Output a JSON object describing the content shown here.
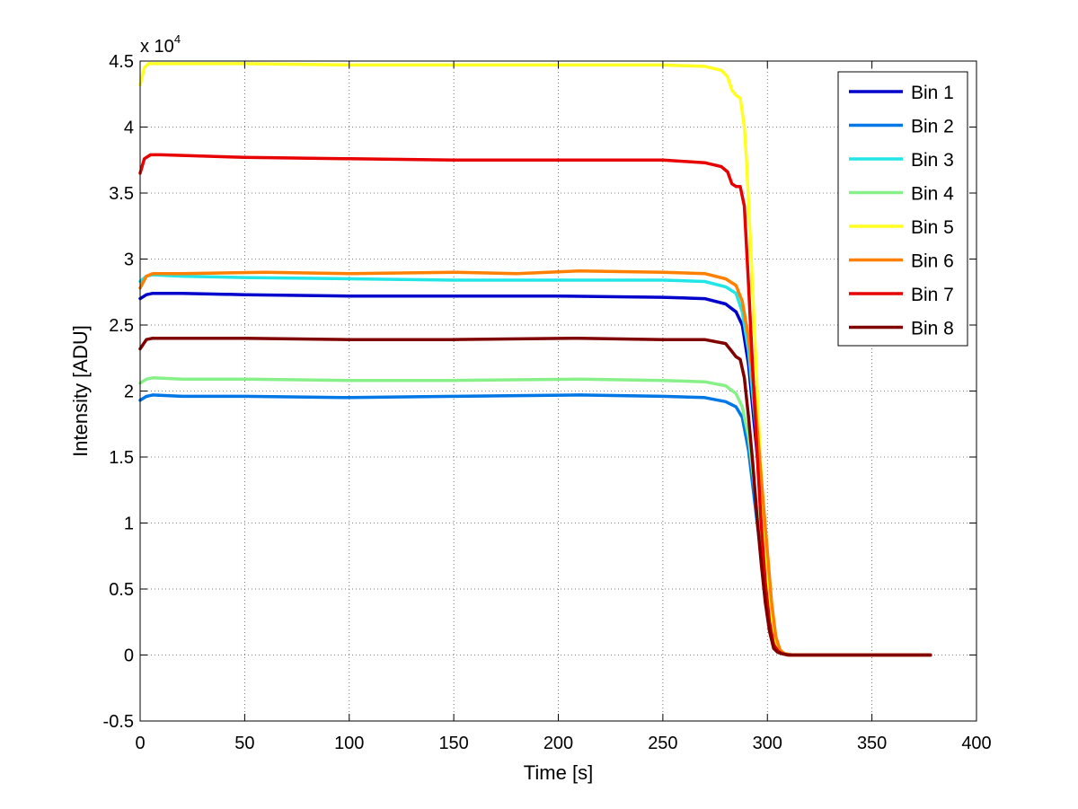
{
  "chart_data": {
    "type": "line",
    "xlabel": "Time [s]",
    "ylabel": "Intensity [ADU]",
    "y_multiplier_label": "x 10",
    "y_multiplier_exponent": "4",
    "xlim": [
      0,
      400
    ],
    "ylim": [
      -0.5,
      4.5
    ],
    "x_ticks": [
      0,
      50,
      100,
      150,
      200,
      250,
      300,
      350,
      400
    ],
    "x_tick_labels": [
      "0",
      "50",
      "100",
      "150",
      "200",
      "250",
      "300",
      "350",
      "400"
    ],
    "y_ticks": [
      -0.5,
      0,
      0.5,
      1,
      1.5,
      2,
      2.5,
      3,
      3.5,
      4,
      4.5
    ],
    "y_tick_labels": [
      "-0.5",
      "0",
      "0.5",
      "1",
      "1.5",
      "2",
      "2.5",
      "3",
      "3.5",
      "4",
      "4.5"
    ],
    "grid": true,
    "legend_position": "top-right",
    "series": [
      {
        "name": "Bin 1",
        "color": "#0000cc",
        "x": [
          0,
          3,
          6,
          20,
          50,
          100,
          150,
          200,
          250,
          270,
          280,
          285,
          288,
          291,
          294,
          297,
          300,
          302,
          304,
          306,
          308,
          312,
          320,
          340,
          360,
          378
        ],
        "y": [
          2.7,
          2.73,
          2.74,
          2.74,
          2.73,
          2.72,
          2.72,
          2.72,
          2.71,
          2.7,
          2.66,
          2.6,
          2.5,
          2.2,
          1.7,
          1.2,
          0.7,
          0.35,
          0.12,
          0.03,
          0.01,
          0,
          0,
          0,
          0,
          0
        ]
      },
      {
        "name": "Bin 2",
        "color": "#0077e6",
        "x": [
          0,
          3,
          6,
          20,
          50,
          100,
          150,
          210,
          250,
          270,
          280,
          285,
          288,
          291,
          294,
          297,
          300,
          302,
          304,
          306,
          308,
          312,
          320,
          340,
          360,
          378
        ],
        "y": [
          1.93,
          1.96,
          1.97,
          1.96,
          1.96,
          1.95,
          1.96,
          1.97,
          1.96,
          1.95,
          1.92,
          1.88,
          1.8,
          1.55,
          1.15,
          0.75,
          0.4,
          0.2,
          0.07,
          0.02,
          0.01,
          0,
          0,
          0,
          0,
          0
        ]
      },
      {
        "name": "Bin 3",
        "color": "#22e5e5",
        "x": [
          0,
          3,
          6,
          20,
          50,
          100,
          150,
          200,
          250,
          270,
          280,
          285,
          288,
          291,
          294,
          297,
          300,
          302,
          304,
          306,
          308,
          312,
          320,
          340,
          360,
          378
        ],
        "y": [
          2.83,
          2.87,
          2.88,
          2.87,
          2.86,
          2.85,
          2.84,
          2.84,
          2.84,
          2.83,
          2.79,
          2.74,
          2.6,
          2.3,
          1.8,
          1.25,
          0.72,
          0.36,
          0.12,
          0.03,
          0.01,
          0,
          0,
          0,
          0,
          0
        ]
      },
      {
        "name": "Bin 4",
        "color": "#88f088",
        "x": [
          0,
          3,
          6,
          20,
          50,
          100,
          150,
          210,
          250,
          270,
          280,
          285,
          288,
          291,
          294,
          297,
          300,
          302,
          304,
          306,
          308,
          312,
          320,
          340,
          360,
          378
        ],
        "y": [
          2.06,
          2.09,
          2.1,
          2.09,
          2.09,
          2.08,
          2.08,
          2.09,
          2.08,
          2.07,
          2.04,
          1.98,
          1.88,
          1.65,
          1.25,
          0.82,
          0.45,
          0.22,
          0.08,
          0.02,
          0.01,
          0,
          0,
          0,
          0,
          0
        ]
      },
      {
        "name": "Bin 5",
        "color": "#ffff22",
        "x": [
          0,
          2,
          4,
          10,
          50,
          100,
          150,
          200,
          250,
          270,
          278,
          281,
          283,
          285,
          287,
          289,
          290,
          292,
          294,
          296,
          298,
          300,
          302,
          304,
          306,
          308,
          312,
          320,
          340,
          360,
          378
        ],
        "y": [
          4.32,
          4.45,
          4.48,
          4.48,
          4.48,
          4.47,
          4.47,
          4.47,
          4.47,
          4.46,
          4.43,
          4.38,
          4.28,
          4.24,
          4.22,
          4.0,
          3.75,
          3.1,
          2.4,
          1.7,
          1.05,
          0.55,
          0.22,
          0.06,
          0.02,
          0.01,
          0,
          0,
          0,
          0,
          0
        ]
      },
      {
        "name": "Bin 6",
        "color": "#ff8000",
        "x": [
          0,
          3,
          6,
          20,
          60,
          100,
          150,
          180,
          210,
          250,
          270,
          280,
          285,
          288,
          291,
          294,
          297,
          300,
          302,
          304,
          306,
          308,
          312,
          320,
          340,
          360,
          378
        ],
        "y": [
          2.78,
          2.87,
          2.89,
          2.89,
          2.9,
          2.89,
          2.9,
          2.89,
          2.91,
          2.9,
          2.89,
          2.85,
          2.8,
          2.68,
          2.4,
          1.95,
          1.35,
          0.78,
          0.4,
          0.14,
          0.04,
          0.01,
          0,
          0,
          0,
          0,
          0
        ]
      },
      {
        "name": "Bin 7",
        "color": "#e80000",
        "x": [
          0,
          2,
          5,
          10,
          50,
          100,
          150,
          200,
          250,
          270,
          278,
          281,
          283,
          285,
          287,
          289,
          291,
          293,
          295,
          297,
          299,
          301,
          303,
          305,
          307,
          310,
          320,
          340,
          360,
          378
        ],
        "y": [
          3.65,
          3.76,
          3.79,
          3.79,
          3.77,
          3.76,
          3.75,
          3.75,
          3.75,
          3.73,
          3.7,
          3.66,
          3.57,
          3.55,
          3.55,
          3.4,
          2.8,
          2.15,
          1.55,
          1.0,
          0.55,
          0.25,
          0.08,
          0.03,
          0.01,
          0,
          0,
          0,
          0,
          0
        ]
      },
      {
        "name": "Bin 8",
        "color": "#800000",
        "x": [
          0,
          3,
          6,
          20,
          50,
          100,
          150,
          210,
          250,
          270,
          280,
          283,
          285,
          287,
          289,
          291,
          293,
          295,
          297,
          299,
          301,
          303,
          305,
          307,
          310,
          320,
          340,
          360,
          378
        ],
        "y": [
          2.32,
          2.39,
          2.4,
          2.4,
          2.4,
          2.39,
          2.39,
          2.4,
          2.39,
          2.39,
          2.36,
          2.3,
          2.26,
          2.24,
          2.1,
          1.8,
          1.45,
          1.05,
          0.7,
          0.4,
          0.18,
          0.05,
          0.02,
          0.01,
          0,
          0,
          0,
          0,
          0
        ]
      }
    ]
  }
}
